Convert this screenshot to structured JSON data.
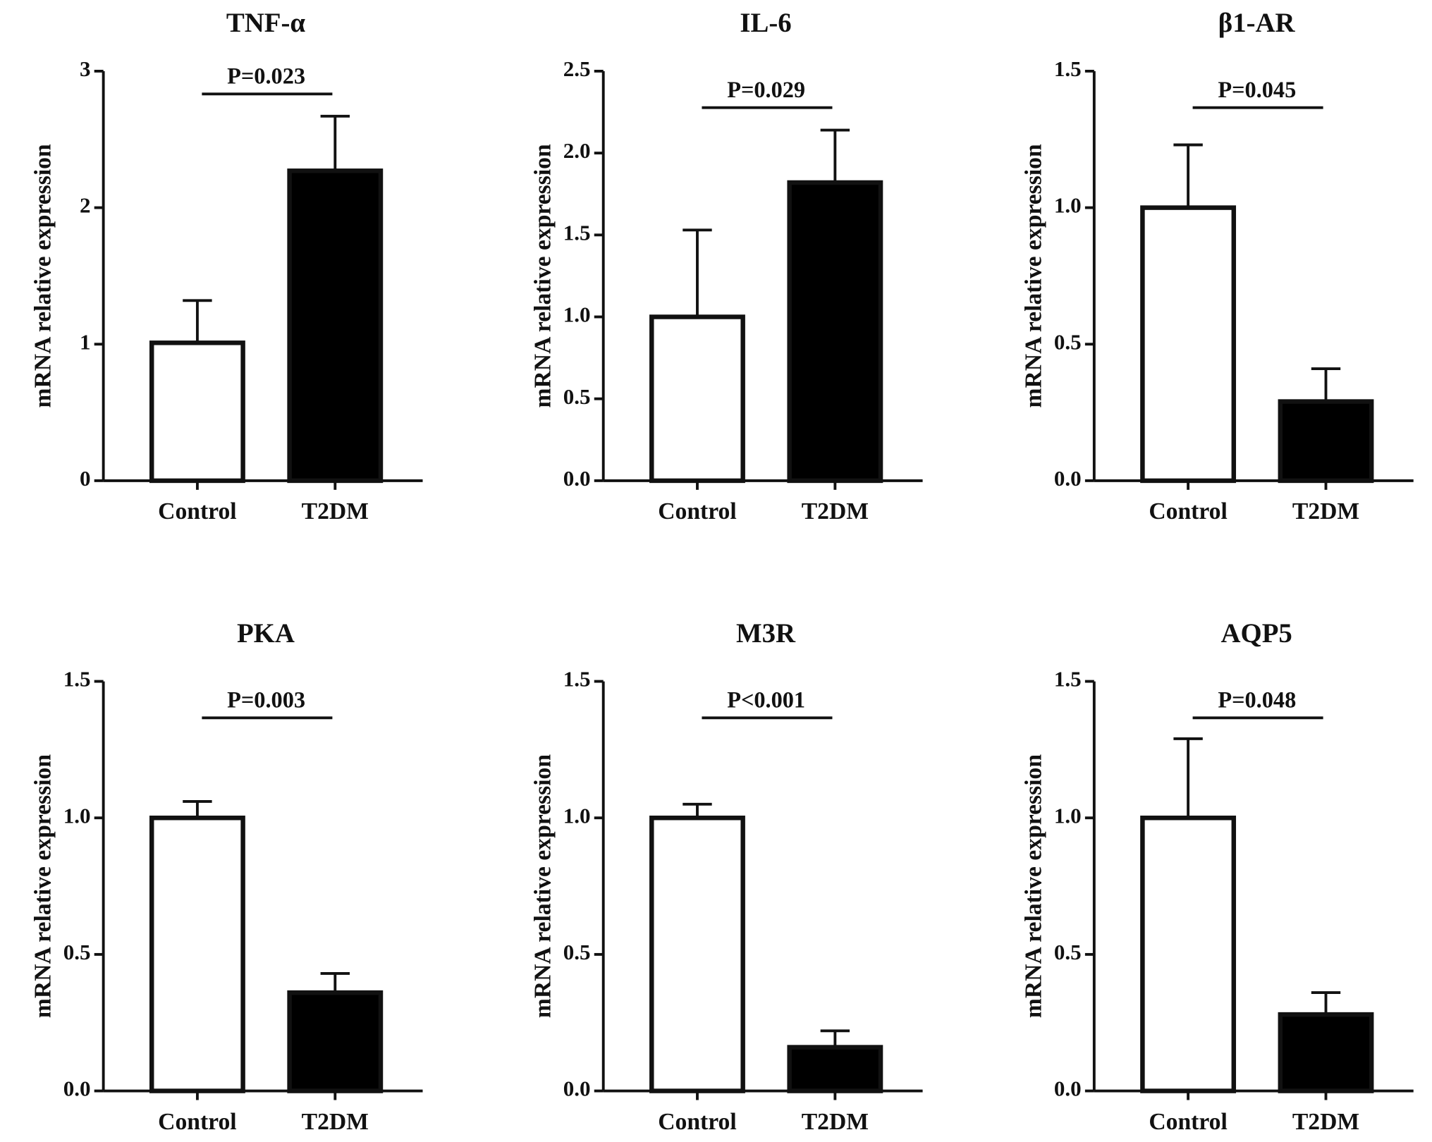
{
  "chart_data": [
    {
      "type": "bar",
      "title": "TNF-α",
      "ylabel": "mRNA relative expression",
      "categories": [
        "Control",
        "T2DM"
      ],
      "values": [
        1.01,
        2.27
      ],
      "errors": [
        0.31,
        0.4
      ],
      "colors": [
        "#ffffff",
        "#000000"
      ],
      "annotation": "P=0.023",
      "ylim": [
        0,
        3
      ],
      "yticks": [
        0,
        1,
        2,
        3
      ]
    },
    {
      "type": "bar",
      "title": "IL-6",
      "ylabel": "mRNA relative expression",
      "categories": [
        "Control",
        "T2DM"
      ],
      "values": [
        1.0,
        1.82
      ],
      "errors": [
        0.53,
        0.32
      ],
      "colors": [
        "#ffffff",
        "#000000"
      ],
      "annotation": "P=0.029",
      "ylim": [
        0,
        2.5
      ],
      "yticks": [
        {
          "value": 0,
          "label": "0.0"
        },
        0.5,
        {
          "value": 1,
          "label": "1.0"
        },
        1.5,
        {
          "value": 2,
          "label": "2.0"
        },
        2.5
      ]
    },
    {
      "type": "bar",
      "title": "β1-AR",
      "ylabel": "mRNA relative expression",
      "categories": [
        "Control",
        "T2DM"
      ],
      "values": [
        1.0,
        0.29
      ],
      "errors": [
        0.23,
        0.12
      ],
      "colors": [
        "#ffffff",
        "#000000"
      ],
      "annotation": "P=0.045",
      "ylim": [
        0,
        1.5
      ],
      "yticks": [
        {
          "value": 0,
          "label": "0.0"
        },
        0.5,
        {
          "value": 1,
          "label": "1.0"
        },
        1.5
      ]
    },
    {
      "type": "bar",
      "title": "PKA",
      "ylabel": "mRNA relative expression",
      "categories": [
        "Control",
        "T2DM"
      ],
      "values": [
        1.0,
        0.36
      ],
      "errors": [
        0.06,
        0.07
      ],
      "colors": [
        "#ffffff",
        "#000000"
      ],
      "annotation": "P=0.003",
      "ylim": [
        0,
        1.5
      ],
      "yticks": [
        {
          "value": 0,
          "label": "0.0"
        },
        0.5,
        {
          "value": 1,
          "label": "1.0"
        },
        1.5
      ]
    },
    {
      "type": "bar",
      "title": "M3R",
      "ylabel": "mRNA relative expression",
      "categories": [
        "Control",
        "T2DM"
      ],
      "values": [
        1.0,
        0.16
      ],
      "errors": [
        0.05,
        0.06
      ],
      "colors": [
        "#ffffff",
        "#000000"
      ],
      "annotation": "P<0.001",
      "ylim": [
        0,
        1.5
      ],
      "yticks": [
        {
          "value": 0,
          "label": "0.0"
        },
        0.5,
        {
          "value": 1,
          "label": "1.0"
        },
        1.5
      ]
    },
    {
      "type": "bar",
      "title": "AQP5",
      "ylabel": "mRNA relative expression",
      "categories": [
        "Control",
        "T2DM"
      ],
      "values": [
        1.0,
        0.28
      ],
      "errors": [
        0.29,
        0.08
      ],
      "colors": [
        "#ffffff",
        "#000000"
      ],
      "annotation": "P=0.048",
      "ylim": [
        0,
        1.5
      ],
      "yticks": [
        {
          "value": 0,
          "label": "0.0"
        },
        0.5,
        {
          "value": 1,
          "label": "1.0"
        },
        1.5
      ]
    }
  ]
}
